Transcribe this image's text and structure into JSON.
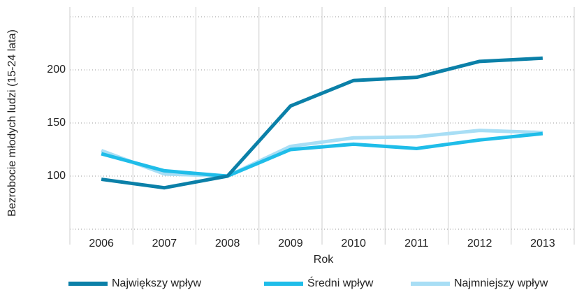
{
  "chart_data": {
    "type": "line",
    "x_label": "Rok",
    "y_label": "Bezrobocie młodych ludzi (15-24 lata)",
    "categories": [
      "2006",
      "2007",
      "2008",
      "2009",
      "2010",
      "2011",
      "2012",
      "2013"
    ],
    "series": [
      {
        "name": "Największy wpływ",
        "color": "#0b80a8",
        "values": [
          97,
          89,
          100,
          166,
          190,
          193,
          208,
          211
        ]
      },
      {
        "name": "Średni wpływ",
        "color": "#1fbde9",
        "values": [
          121,
          105,
          100,
          125,
          130,
          126,
          134,
          140
        ]
      },
      {
        "name": "Najmniejszy wpływ",
        "color": "#a8def5",
        "values": [
          124,
          102,
          100,
          128,
          136,
          137,
          143,
          141
        ]
      }
    ],
    "ylim": [
      50,
      250
    ],
    "yticks": [
      100,
      150,
      200
    ],
    "grid": true
  }
}
